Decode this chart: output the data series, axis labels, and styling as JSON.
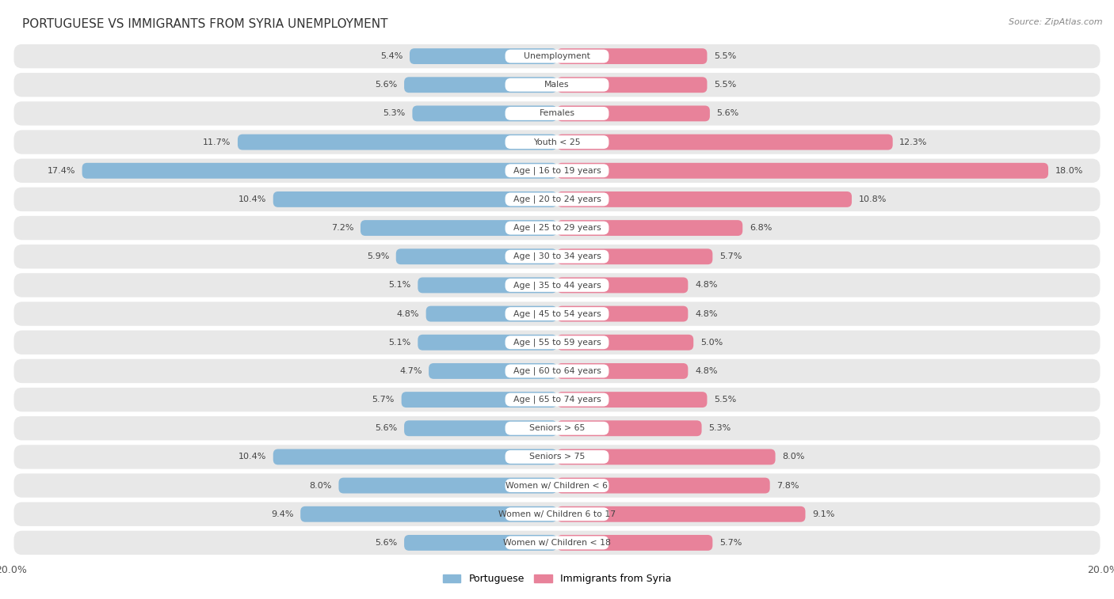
{
  "title": "Portuguese vs Immigrants from Syria Unemployment",
  "title_display": "PORTUGUESE VS IMMIGRANTS FROM SYRIA UNEMPLOYMENT",
  "source": "Source: ZipAtlas.com",
  "categories": [
    "Unemployment",
    "Males",
    "Females",
    "Youth < 25",
    "Age | 16 to 19 years",
    "Age | 20 to 24 years",
    "Age | 25 to 29 years",
    "Age | 30 to 34 years",
    "Age | 35 to 44 years",
    "Age | 45 to 54 years",
    "Age | 55 to 59 years",
    "Age | 60 to 64 years",
    "Age | 65 to 74 years",
    "Seniors > 65",
    "Seniors > 75",
    "Women w/ Children < 6",
    "Women w/ Children 6 to 17",
    "Women w/ Children < 18"
  ],
  "portuguese": [
    5.4,
    5.6,
    5.3,
    11.7,
    17.4,
    10.4,
    7.2,
    5.9,
    5.1,
    4.8,
    5.1,
    4.7,
    5.7,
    5.6,
    10.4,
    8.0,
    9.4,
    5.6
  ],
  "syria": [
    5.5,
    5.5,
    5.6,
    12.3,
    18.0,
    10.8,
    6.8,
    5.7,
    4.8,
    4.8,
    5.0,
    4.8,
    5.5,
    5.3,
    8.0,
    7.8,
    9.1,
    5.7
  ],
  "portuguese_color": "#89b8d8",
  "syria_color": "#e8829a",
  "max_val": 20.0,
  "background_color": "#ffffff",
  "row_bg_color": "#e8e8e8",
  "row_gap_color": "#ffffff",
  "legend_portuguese": "Portuguese",
  "legend_syria": "Immigrants from Syria"
}
